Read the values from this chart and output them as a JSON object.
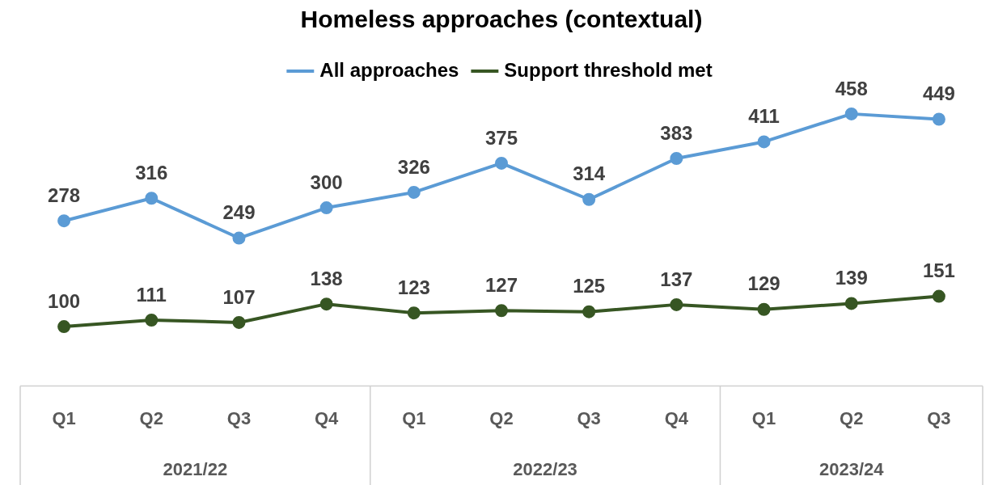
{
  "chart_data": {
    "type": "line",
    "title": "Homeless approaches (contextual)",
    "categories": [
      "Q1",
      "Q2",
      "Q3",
      "Q4",
      "Q1",
      "Q2",
      "Q3",
      "Q4",
      "Q1",
      "Q2",
      "Q3"
    ],
    "series": [
      {
        "name": "All approaches",
        "color": "#5b9bd5",
        "values": [
          278,
          316,
          249,
          300,
          326,
          375,
          314,
          383,
          411,
          458,
          449
        ]
      },
      {
        "name": "Support threshold met",
        "color": "#375623",
        "values": [
          100,
          111,
          107,
          138,
          123,
          127,
          125,
          137,
          129,
          139,
          151
        ]
      }
    ],
    "annotations": [
      "2021/22",
      "2022/23",
      "2023/24"
    ],
    "data_labels": true,
    "legend": "top",
    "grid": false,
    "marker": "circle",
    "line_style": "solid"
  }
}
